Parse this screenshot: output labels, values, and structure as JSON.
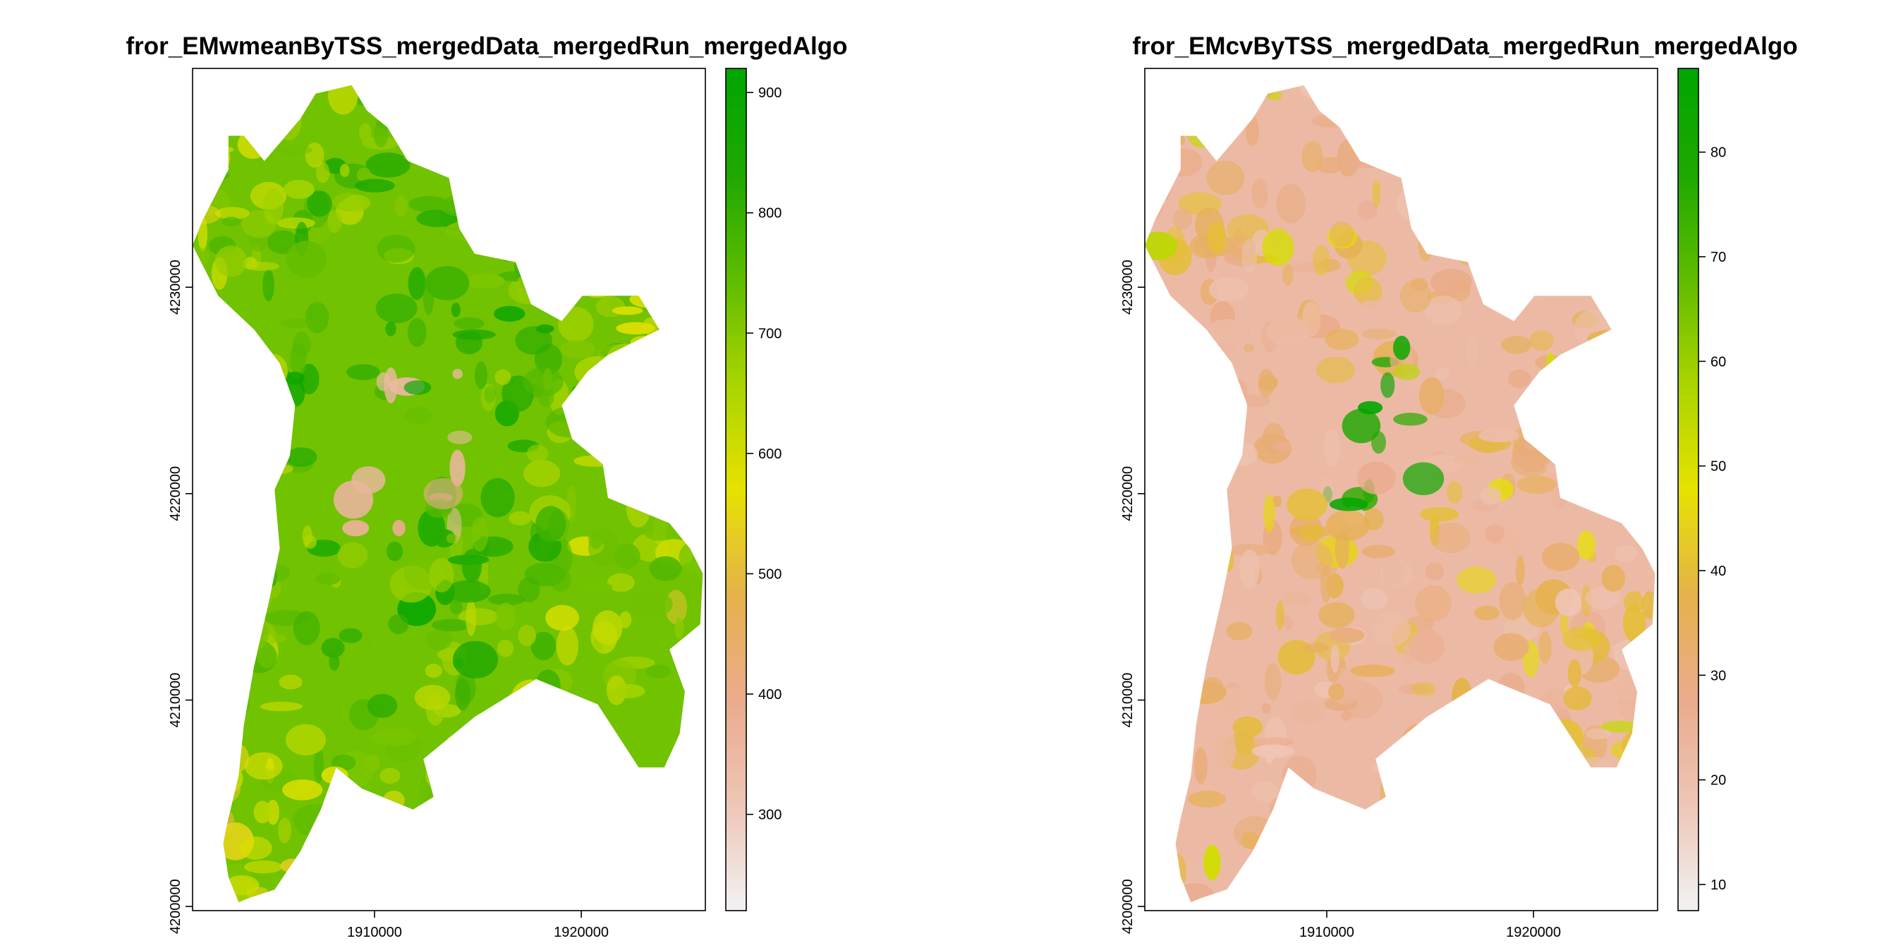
{
  "chart_data": [
    {
      "type": "heatmap",
      "title": "fror_EMwmeanByTSS_mergedData_mergedRun_mergedAlgo",
      "xlabel": "",
      "ylabel": "",
      "x_ticks": [
        1910000,
        1920000
      ],
      "x_tick_labels": [
        "1910000",
        "1920000"
      ],
      "xlim": [
        1901200,
        1926000
      ],
      "y_ticks": [
        4200000,
        4210000,
        4220000,
        4230000
      ],
      "y_tick_labels": [
        "4200000",
        "4210000",
        "4220000",
        "4230000"
      ],
      "ylim": [
        4199800,
        4240600
      ],
      "legend": {
        "position": "right",
        "range": [
          220,
          920
        ],
        "ticks": [
          300,
          400,
          500,
          600,
          700,
          800,
          900
        ],
        "tick_labels": [
          "300",
          "400",
          "500",
          "600",
          "700",
          "800",
          "900"
        ]
      },
      "colormap": [
        "#f2f2f2",
        "#eec6b6",
        "#eaab8d",
        "#e5b24b",
        "#e6e200",
        "#aad400",
        "#5fbc00",
        "#1ea800",
        "#00a600"
      ]
    },
    {
      "type": "heatmap",
      "title": "fror_EMcvByTSS_mergedData_mergedRun_mergedAlgo",
      "xlabel": "",
      "ylabel": "",
      "x_ticks": [
        1910000,
        1920000
      ],
      "x_tick_labels": [
        "1910000",
        "1920000"
      ],
      "xlim": [
        1901200,
        1926000
      ],
      "y_ticks": [
        4200000,
        4210000,
        4220000,
        4230000
      ],
      "y_tick_labels": [
        "4200000",
        "4210000",
        "4220000",
        "4230000"
      ],
      "ylim": [
        4199800,
        4240600
      ],
      "legend": {
        "position": "right",
        "range": [
          7.5,
          88
        ],
        "ticks": [
          10,
          20,
          30,
          40,
          50,
          60,
          70,
          80
        ],
        "tick_labels": [
          "10",
          "20",
          "30",
          "40",
          "50",
          "60",
          "70",
          "80"
        ]
      },
      "colormap": [
        "#f2f2f2",
        "#eec6b6",
        "#eaab8d",
        "#e5b24b",
        "#e6e200",
        "#aad400",
        "#5fbc00",
        "#1ea800",
        "#00a600"
      ]
    }
  ]
}
